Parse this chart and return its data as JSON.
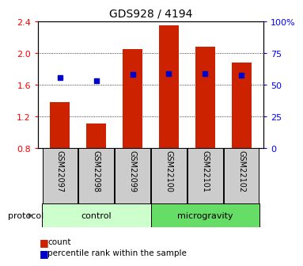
{
  "title": "GDS928 / 4194",
  "samples": [
    "GSM22097",
    "GSM22098",
    "GSM22099",
    "GSM22100",
    "GSM22101",
    "GSM22102"
  ],
  "bar_values": [
    1.38,
    1.11,
    2.05,
    2.35,
    2.08,
    1.88
  ],
  "blue_marker_values": [
    1.69,
    1.65,
    1.73,
    1.74,
    1.74,
    1.72
  ],
  "bar_color": "#cc2200",
  "marker_color": "#0000cc",
  "ylim_left": [
    0.8,
    2.4
  ],
  "ylim_right": [
    0,
    100
  ],
  "yticks_left": [
    0.8,
    1.2,
    1.6,
    2.0,
    2.4
  ],
  "yticks_right": [
    0,
    25,
    50,
    75,
    100
  ],
  "ytick_labels_right": [
    "0",
    "25",
    "50",
    "75",
    "100%"
  ],
  "baseline": 0.8,
  "groups": [
    {
      "label": "control",
      "indices": [
        0,
        1,
        2
      ],
      "color": "#ccffcc"
    },
    {
      "label": "microgravity",
      "indices": [
        3,
        4,
        5
      ],
      "color": "#66dd66"
    }
  ],
  "protocol_label": "protocol",
  "legend_items": [
    {
      "color": "#cc2200",
      "label": "count"
    },
    {
      "color": "#0000cc",
      "label": "percentile rank within the sample"
    }
  ],
  "bar_width": 0.55,
  "grid_color": "#000000"
}
